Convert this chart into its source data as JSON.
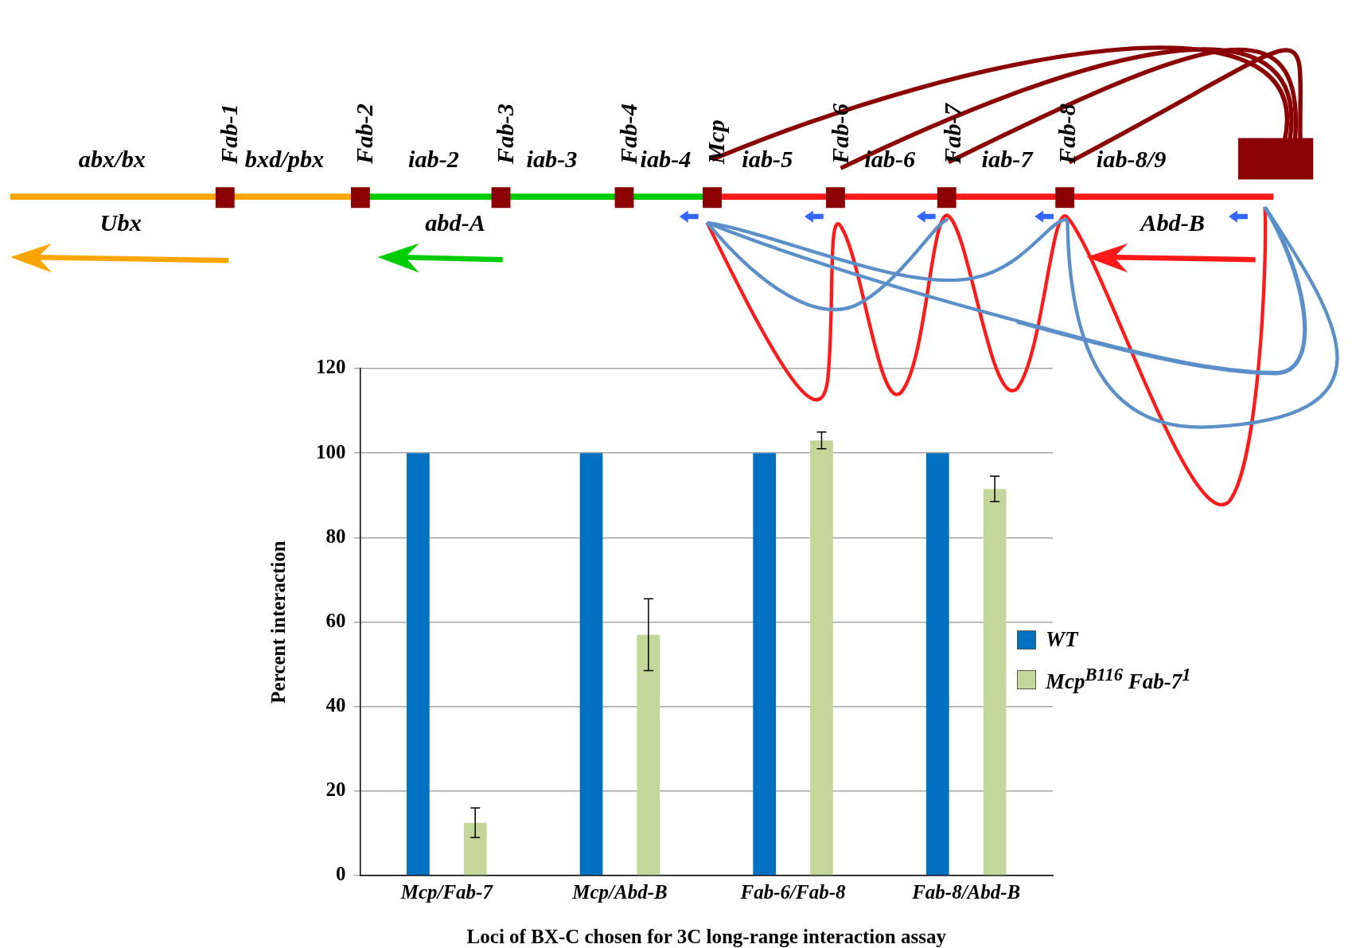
{
  "chart_data": {
    "type": "bar",
    "categories": [
      "Mcp/Fab-7",
      "Mcp/Abd-B",
      "Fab-6/Fab-8",
      "Fab-8/Abd-B"
    ],
    "series": [
      {
        "name": "WT",
        "color": "#0070c0",
        "values": [
          100,
          100,
          100,
          100
        ]
      },
      {
        "name": "Mcp$^{B116}$ Fab-7$^{1}$",
        "color": "#c4d79b",
        "values": [
          12.5,
          57,
          103,
          91.5
        ],
        "errors": [
          3.5,
          8.5,
          2,
          3
        ]
      }
    ],
    "xlabel": "Loci of BX-C chosen for 3C long-range interaction assay",
    "ylabel": "Percent interaction",
    "ylim": [
      0,
      120
    ],
    "yticks": [
      0,
      20,
      40,
      60,
      80,
      100,
      120
    ],
    "grid": "y",
    "legend": "right",
    "annotations": [
      "abx/bx",
      "Fab-1",
      "bxd/pbx",
      "Fab-2",
      "iab-2",
      "Fab-3",
      "iab-3",
      "Fab-4",
      "iab-4",
      "Mcp",
      "iab-5",
      "Fab-6",
      "iab-6",
      "Fab-7",
      "iab-7",
      "Fab-8",
      "iab-8/9",
      "Ubx",
      "abd-A",
      "Abd-B"
    ]
  }
}
